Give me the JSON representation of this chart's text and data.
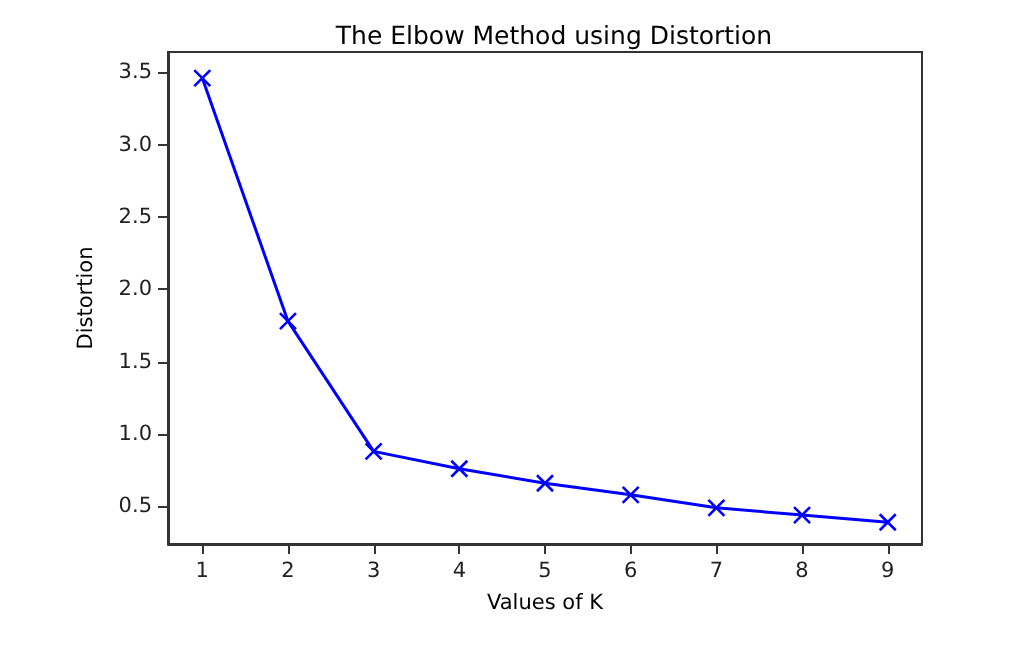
{
  "chart_data": {
    "type": "line",
    "title": "The Elbow Method using Distortion",
    "xlabel": "Values of K",
    "ylabel": "Distortion",
    "x": [
      1,
      2,
      3,
      4,
      5,
      6,
      7,
      8,
      9
    ],
    "series": [
      {
        "color": "#0000ff",
        "values": [
          3.46,
          1.78,
          0.88,
          0.76,
          0.66,
          0.58,
          0.49,
          0.44,
          0.39
        ]
      }
    ],
    "xlim": [
      0.6,
      9.4
    ],
    "xticks": [
      1,
      2,
      3,
      4,
      5,
      6,
      7,
      8,
      9
    ],
    "ylim": [
      0.24,
      3.64
    ],
    "yticks": [
      0.5,
      {
        "value": 1,
        "label": "1.0"
      },
      1.5,
      {
        "value": 2,
        "label": "2.0"
      },
      2.5,
      {
        "value": 3,
        "label": "3.0"
      },
      3.5
    ],
    "grid": false,
    "marker": "cross",
    "line_style": "solid"
  }
}
